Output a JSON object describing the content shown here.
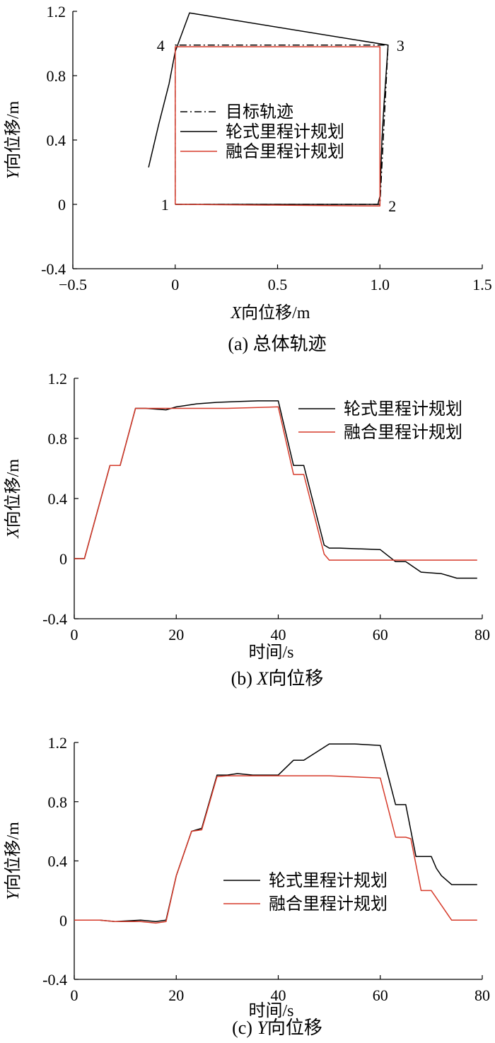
{
  "chart_data": [
    {
      "type": "line",
      "caption": "(a) 总体轨迹",
      "xlabel": "X向位移/m",
      "ylabel": "Y向位移/m",
      "xlim": [
        -0.5,
        1.5
      ],
      "ylim": [
        -0.4,
        1.2
      ],
      "xticks": [
        -0.5,
        0,
        0.5,
        1.0,
        1.5
      ],
      "xtick_labels": [
        "−0.5",
        "0",
        "0.5",
        "1.0",
        "1.5"
      ],
      "yticks": [
        -0.4,
        0,
        0.4,
        0.8,
        1.2
      ],
      "ytick_labels": [
        "-0.4",
        "0",
        "0.4",
        "0.8",
        "1.2"
      ],
      "legend_position": "center",
      "grid": false,
      "corner_labels": [
        {
          "text": "1",
          "x": 0,
          "y": 0
        },
        {
          "text": "2",
          "x": 1.0,
          "y": 0
        },
        {
          "text": "3",
          "x": 1.04,
          "y": 0.99
        },
        {
          "text": "4",
          "x": 0,
          "y": 0.99
        }
      ],
      "series": [
        {
          "name": "目标轨迹",
          "color": "#000000",
          "style": "dashdot",
          "x": [
            0,
            1.0,
            1.04,
            0,
            0
          ],
          "y": [
            0,
            0,
            0.99,
            0.99,
            0
          ]
        },
        {
          "name": "轮式里程计规划",
          "color": "#000000",
          "style": "solid",
          "x": [
            0,
            0.99,
            1.0,
            1.01,
            1.02,
            1.04,
            0.07,
            0.0,
            -0.03,
            -0.08,
            -0.13
          ],
          "y": [
            0,
            0,
            0.05,
            0.4,
            0.62,
            0.99,
            1.19,
            0.95,
            0.75,
            0.5,
            0.23
          ]
        },
        {
          "name": "融合里程计规划",
          "color": "#d63a2a",
          "style": "solid",
          "x": [
            0,
            1.0,
            1.0,
            0,
            0
          ],
          "y": [
            0,
            -0.01,
            0.98,
            0.98,
            0
          ]
        }
      ]
    },
    {
      "type": "line",
      "caption": "(b) X向位移",
      "xlabel": "时间/s",
      "ylabel": "X向位移/m",
      "xlim": [
        0,
        80
      ],
      "ylim": [
        -0.4,
        1.2
      ],
      "xticks": [
        0,
        20,
        40,
        60,
        80
      ],
      "xtick_labels": [
        "0",
        "20",
        "40",
        "60",
        "80"
      ],
      "yticks": [
        -0.4,
        0,
        0.4,
        0.8,
        1.2
      ],
      "ytick_labels": [
        "-0.4",
        "0",
        "0.4",
        "0.8",
        "1.2"
      ],
      "legend_position": "top-right",
      "grid": false,
      "series": [
        {
          "name": "轮式里程计规划",
          "color": "#000000",
          "style": "solid",
          "x": [
            0,
            2,
            7,
            9,
            12,
            14,
            18,
            20,
            24,
            28,
            32,
            36,
            40,
            43,
            45,
            49,
            50,
            52,
            60,
            63,
            65,
            68,
            72,
            75,
            79
          ],
          "y": [
            0,
            0,
            0.62,
            0.62,
            1.0,
            1.0,
            0.99,
            1.01,
            1.03,
            1.04,
            1.045,
            1.05,
            1.05,
            0.62,
            0.62,
            0.09,
            0.07,
            0.07,
            0.06,
            -0.02,
            -0.02,
            -0.09,
            -0.1,
            -0.13,
            -0.13
          ]
        },
        {
          "name": "融合里程计规划",
          "color": "#d63a2a",
          "style": "solid",
          "x": [
            0,
            2,
            7,
            9,
            12,
            20,
            30,
            40,
            43,
            45,
            49,
            50,
            60,
            70,
            79
          ],
          "y": [
            0,
            0,
            0.62,
            0.62,
            1.0,
            1.0,
            1.0,
            1.01,
            0.56,
            0.56,
            0.03,
            -0.01,
            -0.01,
            -0.01,
            -0.01
          ]
        }
      ]
    },
    {
      "type": "line",
      "caption": "(c) Y向位移",
      "xlabel": "时间/s",
      "ylabel": "Y向位移/m",
      "xlim": [
        0,
        80
      ],
      "ylim": [
        -0.4,
        1.2
      ],
      "xticks": [
        0,
        20,
        40,
        60,
        80
      ],
      "xtick_labels": [
        "0",
        "20",
        "40",
        "60",
        "80"
      ],
      "yticks": [
        -0.4,
        0,
        0.4,
        0.8,
        1.2
      ],
      "ytick_labels": [
        "-0.4",
        "0",
        "0.4",
        "0.8",
        "1.2"
      ],
      "legend_position": "bottom-right",
      "grid": false,
      "series": [
        {
          "name": "轮式里程计规划",
          "color": "#000000",
          "style": "solid",
          "x": [
            0,
            5,
            8,
            13,
            16,
            18,
            20,
            23,
            25,
            28,
            30,
            32,
            35,
            40,
            43,
            45,
            50,
            55,
            60,
            63,
            65,
            67,
            70,
            71,
            72,
            74,
            79
          ],
          "y": [
            0,
            0,
            -0.01,
            0,
            -0.01,
            0,
            0.3,
            0.6,
            0.62,
            0.98,
            0.98,
            0.99,
            0.98,
            0.98,
            1.08,
            1.08,
            1.19,
            1.19,
            1.18,
            0.78,
            0.78,
            0.43,
            0.43,
            0.35,
            0.3,
            0.24,
            0.24
          ]
        },
        {
          "name": "融合里程计规划",
          "color": "#d63a2a",
          "style": "solid",
          "x": [
            0,
            5,
            8,
            13,
            16,
            18,
            20,
            23,
            25,
            28,
            30,
            40,
            50,
            60,
            63,
            65,
            66,
            68,
            70,
            72,
            74,
            79
          ],
          "y": [
            0,
            0,
            -0.01,
            -0.01,
            -0.02,
            -0.01,
            0.3,
            0.6,
            0.61,
            0.97,
            0.975,
            0.975,
            0.975,
            0.96,
            0.56,
            0.56,
            0.55,
            0.2,
            0.2,
            0.1,
            0,
            0
          ]
        }
      ]
    }
  ]
}
